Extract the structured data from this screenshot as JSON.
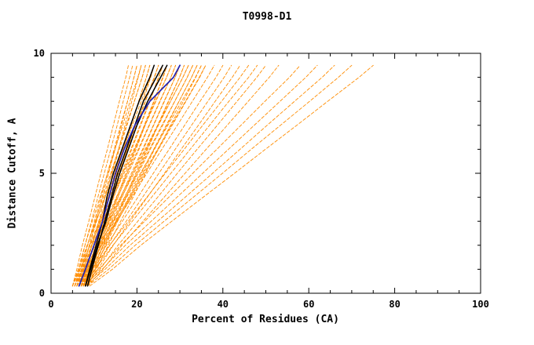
{
  "chart_data": {
    "type": "line",
    "title": "T0998-D1",
    "xlabel": "Percent of Residues (CA)",
    "ylabel": "Distance Cutoff, A",
    "xlim": [
      0,
      100
    ],
    "ylim": [
      0,
      10
    ],
    "x_major_ticks": [
      0,
      20,
      40,
      60,
      80,
      100
    ],
    "x_minor_step": 5,
    "y_major_ticks": [
      0,
      5,
      10
    ],
    "y_minor_step": 1,
    "grid": false,
    "legend_position": "none",
    "colors": {
      "models": "#ff8c00",
      "reference": "#000000",
      "highlight": "#2121b0",
      "frame": "#000000",
      "background": "#ffffff"
    },
    "y_levels": [
      0.3,
      1,
      2,
      3,
      4,
      5,
      6,
      7,
      8,
      9,
      9.5
    ],
    "series": [
      {
        "name": "model-curves-orange",
        "color_key": "models",
        "dashed": true,
        "width": 0.9,
        "curves": [
          [
            5,
            6,
            7.3,
            8.8,
            10.2,
            11.6,
            13.1,
            14.5,
            15.9,
            17.4,
            18
          ],
          [
            5.5,
            6.6,
            7.9,
            9.4,
            10.9,
            12.4,
            13.9,
            15.4,
            16.8,
            18.3,
            19
          ],
          [
            6,
            7.1,
            8.5,
            10.1,
            11.6,
            13.1,
            14.7,
            16.2,
            17.8,
            19.3,
            20
          ],
          [
            6.5,
            7.6,
            8.9,
            10.4,
            11.9,
            13.4,
            14.9,
            16.4,
            17.8,
            19.3,
            20
          ],
          [
            7,
            8.1,
            9.5,
            11.1,
            12.6,
            14.1,
            15.7,
            17.2,
            18.8,
            20.3,
            21
          ],
          [
            5,
            6.3,
            7.9,
            9.6,
            11.4,
            13.2,
            14.9,
            16.7,
            18.4,
            20.2,
            21
          ],
          [
            5.5,
            6.8,
            8.5,
            10.3,
            12.1,
            13.9,
            15.7,
            17.5,
            19.4,
            21.2,
            22
          ],
          [
            6,
            7.3,
            8.9,
            10.6,
            12.4,
            14.2,
            15.9,
            17.7,
            19.4,
            21.2,
            22
          ],
          [
            6.5,
            7.8,
            9.5,
            11.3,
            13.1,
            14.9,
            16.7,
            18.5,
            20.4,
            22.2,
            23
          ],
          [
            7,
            8.3,
            9.9,
            11.6,
            13.4,
            15.2,
            16.9,
            18.7,
            20.4,
            22.2,
            23
          ],
          [
            7.5,
            8.8,
            10.5,
            12.3,
            14.1,
            15.9,
            17.7,
            19.5,
            21.4,
            23.2,
            24
          ],
          [
            5,
            6.5,
            8.4,
            10.5,
            12.6,
            14.7,
            16.8,
            18.9,
            21,
            23.1,
            24
          ],
          [
            5.5,
            7.1,
            9,
            11.2,
            13.3,
            15.4,
            17.6,
            19.7,
            21.9,
            24,
            25
          ],
          [
            6,
            7.5,
            9.4,
            11.5,
            13.6,
            15.7,
            17.8,
            19.9,
            22,
            24.1,
            25
          ],
          [
            6.5,
            8.1,
            10,
            12.2,
            14.3,
            16.4,
            18.6,
            20.7,
            22.9,
            25,
            26
          ],
          [
            7,
            8.5,
            10.4,
            12.5,
            14.6,
            16.7,
            18.8,
            20.9,
            23,
            25.1,
            26
          ],
          [
            7.5,
            9.1,
            11,
            13.2,
            15.3,
            17.4,
            19.6,
            21.7,
            23.9,
            26,
            27
          ],
          [
            8,
            9.5,
            11.4,
            13.5,
            15.6,
            17.7,
            19.8,
            21.9,
            24,
            26.1,
            27
          ],
          [
            5,
            6.8,
            9.1,
            11.7,
            14.2,
            16.7,
            19.3,
            21.8,
            24.3,
            26.9,
            28
          ],
          [
            5.5,
            7.3,
            9.6,
            12,
            14.5,
            17,
            19.5,
            21.9,
            24.4,
            26.9,
            28
          ],
          [
            6,
            7.8,
            10.1,
            12.7,
            15.2,
            17.7,
            20.3,
            22.8,
            25.3,
            27.9,
            29
          ],
          [
            6.5,
            8.3,
            10.6,
            13,
            15.5,
            18,
            20.5,
            22.9,
            25.4,
            27.9,
            29
          ],
          [
            7,
            8.8,
            11.1,
            13.7,
            16.2,
            18.7,
            21.3,
            23.8,
            26.3,
            28.9,
            30
          ],
          [
            7.5,
            9.3,
            11.6,
            14,
            16.5,
            19,
            21.5,
            23.9,
            26.4,
            28.9,
            30
          ],
          [
            8,
            9.8,
            12.1,
            14.7,
            17.2,
            19.7,
            22.3,
            24.8,
            27.3,
            29.9,
            31
          ],
          [
            8.5,
            10.3,
            12.6,
            15,
            17.5,
            20,
            22.5,
            24.9,
            27.4,
            29.9,
            31
          ],
          [
            5.5,
            7.6,
            10.3,
            13.2,
            16.1,
            19,
            21.9,
            24.8,
            27.8,
            30.7,
            32
          ],
          [
            6,
            8.1,
            10.7,
            13.5,
            16.4,
            19.3,
            22.1,
            25,
            27.8,
            30.7,
            32
          ],
          [
            6.5,
            8.6,
            11.3,
            14.2,
            17.1,
            20,
            22.9,
            25.8,
            28.8,
            31.7,
            33
          ],
          [
            7,
            9.1,
            11.7,
            14.5,
            17.4,
            20.3,
            23.1,
            26,
            28.8,
            31.7,
            33
          ],
          [
            7.5,
            9.6,
            12.3,
            15.2,
            18.1,
            21,
            23.9,
            26.8,
            29.8,
            32.7,
            34
          ],
          [
            8,
            10.1,
            12.7,
            15.5,
            18.4,
            21.3,
            24.1,
            27,
            29.8,
            32.7,
            34
          ],
          [
            8.5,
            10.6,
            13.3,
            16.2,
            19.1,
            22,
            24.9,
            27.8,
            30.8,
            33.7,
            35
          ],
          [
            6,
            8.3,
            11.2,
            14.4,
            17.6,
            20.8,
            24,
            27.2,
            30.4,
            33.6,
            35
          ],
          [
            6.5,
            8.9,
            11.8,
            15.1,
            18.3,
            21.5,
            24.8,
            28,
            31.3,
            34.5,
            36
          ],
          [
            7,
            9.3,
            12.2,
            15.4,
            18.6,
            21.8,
            25,
            28.2,
            31.4,
            34.6,
            36
          ],
          [
            6,
            8.6,
            11.8,
            15.3,
            18.8,
            22.3,
            25.8,
            29.4,
            32.9,
            36.4,
            38
          ],
          [
            7,
            9.6,
            12.9,
            16.6,
            20.2,
            23.8,
            27.5,
            31.1,
            34.7,
            38.4,
            40
          ],
          [
            7.5,
            10.3,
            13.7,
            17.5,
            21.3,
            25.1,
            28.9,
            32.7,
            36.5,
            40.3,
            42
          ],
          [
            8,
            10.9,
            14.5,
            18.4,
            22.4,
            26.4,
            30.3,
            34.3,
            38.2,
            42.2,
            44
          ],
          [
            6.5,
            9.7,
            13.6,
            18,
            22.3,
            26.6,
            31,
            35.3,
            39.7,
            44,
            46
          ],
          [
            7,
            10.3,
            14.4,
            18.9,
            23.4,
            27.9,
            32.4,
            36.9,
            41.4,
            46,
            48
          ],
          [
            8,
            11.4,
            15.6,
            20.2,
            24.8,
            29.4,
            34,
            38.7,
            43.3,
            47.9,
            50
          ],
          [
            8.5,
            12.1,
            16.5,
            21.4,
            26.3,
            31.2,
            36.1,
            41,
            45.9,
            50.8,
            53
          ],
          [
            7,
            11.1,
            16.2,
            21.8,
            27.4,
            33,
            38.6,
            44.2,
            49.8,
            55.5,
            58
          ],
          [
            7.5,
            11.9,
            17.3,
            23.3,
            29.3,
            35.3,
            41.3,
            47.3,
            53.3,
            59.3,
            62
          ],
          [
            8,
            12.6,
            18.4,
            24.8,
            31.2,
            37.6,
            44,
            50.3,
            56.7,
            63.1,
            66
          ],
          [
            8.5,
            13.4,
            19.6,
            26.3,
            33.1,
            39.9,
            46.6,
            53.4,
            60.2,
            66.9,
            70
          ],
          [
            9,
            14.3,
            20.9,
            28.1,
            35.4,
            42.7,
            49.9,
            57.2,
            64.4,
            71.7,
            75
          ]
        ]
      },
      {
        "name": "reference-curves-black",
        "color_key": "reference",
        "dashed": false,
        "width": 1.5,
        "curves": [
          [
            8,
            9,
            10.5,
            12,
            13,
            14.5,
            16.5,
            18.5,
            20.5,
            23,
            24
          ],
          [
            8.5,
            9.5,
            11,
            12.5,
            14,
            15.5,
            17.5,
            19.5,
            21.5,
            24.5,
            26
          ],
          [
            8,
            9.2,
            10.8,
            12.8,
            14.3,
            16,
            18,
            20,
            22.5,
            25.5,
            27
          ]
        ]
      },
      {
        "name": "highlight-curve-blue",
        "color_key": "highlight",
        "dashed": false,
        "width": 1.7,
        "curves": [
          [
            6.5,
            8,
            10,
            12,
            13.5,
            15,
            17,
            19.5,
            23,
            28.5,
            30
          ]
        ]
      }
    ]
  }
}
